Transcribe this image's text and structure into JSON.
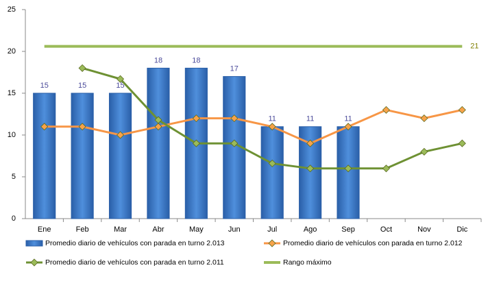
{
  "chart_data": {
    "type": "bar",
    "categories": [
      "Ene",
      "Feb",
      "Mar",
      "Abr",
      "May",
      "Jun",
      "Jul",
      "Ago",
      "Sep",
      "Oct",
      "Nov",
      "Dic"
    ],
    "ylim": [
      0,
      25
    ],
    "yticks": [
      0,
      5,
      10,
      15,
      20,
      25
    ],
    "grid": false,
    "series": [
      {
        "name": "Promedio diario de vehículos con parada en turno 2.013",
        "type": "bar",
        "color": "#3a78c8",
        "label_color": "#4a4a9a",
        "values": [
          15,
          15,
          15,
          18,
          18,
          17,
          11,
          11,
          11,
          null,
          null,
          null
        ]
      },
      {
        "name": "Promedio diario de vehículos con parada en turno 2.012",
        "type": "line",
        "color": "#f79646",
        "marker": "diamond",
        "marker_color": "#f7a34a",
        "values": [
          11,
          11,
          10,
          11,
          12,
          12,
          11,
          9,
          11,
          13,
          12,
          13
        ]
      },
      {
        "name": "Promedio diario de vehículos con parada en turno 2.011",
        "type": "line",
        "color": "#6e9133",
        "marker": "diamond",
        "marker_color": "#9bbb59",
        "values": [
          null,
          18,
          16.7,
          11.8,
          9,
          9,
          6.6,
          6,
          6,
          6,
          8,
          9
        ]
      },
      {
        "name": "Rango máximo",
        "type": "line",
        "color": "#9bbb59",
        "label_color": "#7f7f00",
        "values": [
          20.6,
          20.6,
          20.6,
          20.6,
          20.6,
          20.6,
          20.6,
          20.6,
          20.6,
          20.6,
          20.6,
          20.6
        ],
        "value_labels": [
          null,
          null,
          null,
          null,
          null,
          null,
          null,
          null,
          null,
          null,
          null,
          "21"
        ]
      }
    ]
  }
}
